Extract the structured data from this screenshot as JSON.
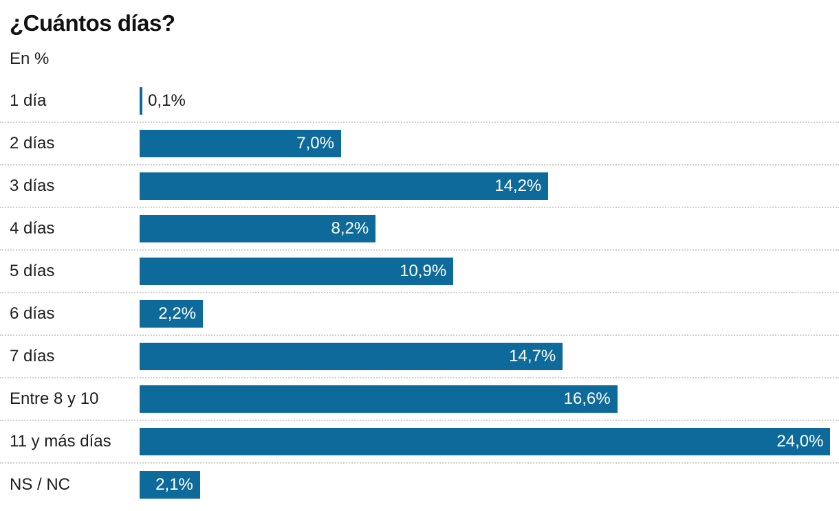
{
  "title": "¿Cuántos días?",
  "subtitle": "En %",
  "colors": {
    "bar": "#0d6a9a",
    "value_inside": "#ffffff",
    "value_outside": "#1a1a1a",
    "separator": "#cfcfcf",
    "title_text": "#111111",
    "category_text": "#1d1d1d"
  },
  "chart_data": {
    "type": "bar",
    "orientation": "horizontal",
    "title": "¿Cuántos días?",
    "subtitle": "En %",
    "xlabel": "",
    "ylabel": "",
    "grid": false,
    "legend": false,
    "xlim": [
      0,
      24.3
    ],
    "categories": [
      "1 día",
      "2 días",
      "3 días",
      "4 días",
      "5 días",
      "6 días",
      "7 días",
      "Entre 8 y 10",
      "11 y más días",
      "NS / NC"
    ],
    "values": [
      0.1,
      7.0,
      14.2,
      8.2,
      10.9,
      2.2,
      14.7,
      16.6,
      24.0,
      2.1
    ],
    "value_labels": [
      "0,1%",
      "7,0%",
      "14,2%",
      "8,2%",
      "10,9%",
      "2,2%",
      "14,7%",
      "16,6%",
      "24,0%",
      "2,1%"
    ]
  }
}
